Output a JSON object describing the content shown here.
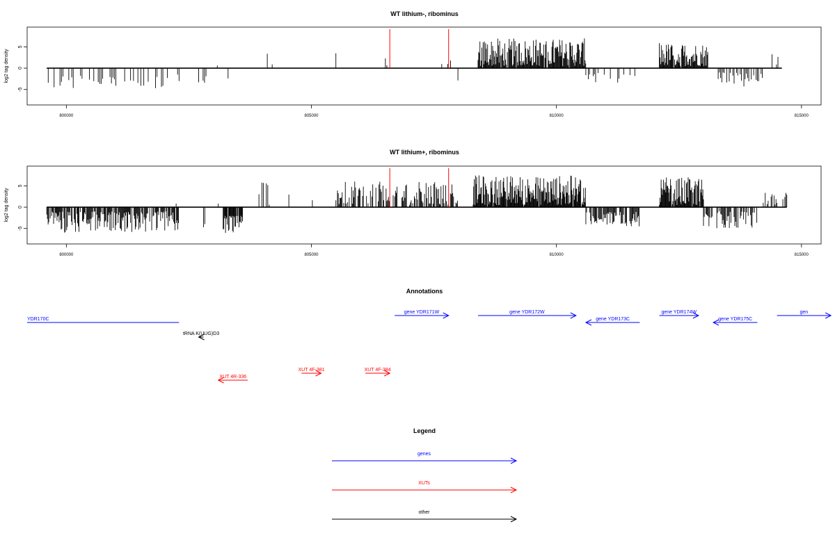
{
  "colors": {
    "signal": "#000000",
    "highlight": "#ff0000",
    "gene": "#0000ff",
    "xut": "#ff0000",
    "other": "#000000"
  },
  "chart_data": [
    {
      "type": "bar",
      "title": "WT lithium-, ribominus",
      "ylabel": "log2 tag density",
      "xlim": [
        799200,
        815400
      ],
      "ylim": [
        -7,
        8
      ],
      "xticks": [
        800000,
        805000,
        810000,
        815000
      ],
      "yticks": [
        -5,
        0,
        5
      ],
      "baseline_span": [
        799600,
        814600
      ],
      "highlight_x": [
        806600,
        807800
      ],
      "segments": [
        {
          "x": [
            799600,
            802300
          ],
          "sign": -1,
          "density": 0.4,
          "amp": [
            1.5,
            5.0
          ],
          "step": 30
        },
        {
          "x": [
            802500,
            802600
          ],
          "sign": 1,
          "density": 0.3,
          "amp": [
            0.5,
            1.0
          ],
          "step": 40
        },
        {
          "x": [
            802700,
            802900
          ],
          "sign": -1,
          "density": 0.5,
          "amp": [
            1.0,
            5.0
          ],
          "step": 30
        },
        {
          "x": [
            803000,
            803100
          ],
          "sign": 1,
          "density": 0.3,
          "amp": [
            0.5,
            1.0
          ],
          "step": 40
        },
        {
          "x": [
            803300,
            803600
          ],
          "sign": -1,
          "density": 0.3,
          "amp": [
            1.5,
            3.5
          ],
          "step": 40
        },
        {
          "x": [
            803900,
            804600
          ],
          "sign": 1,
          "density": 0.12,
          "amp": [
            0.5,
            6.0
          ],
          "step": 50
        },
        {
          "x": [
            805400,
            806000
          ],
          "sign": 1,
          "density": 0.18,
          "amp": [
            0.5,
            4.0
          ],
          "step": 50
        },
        {
          "x": [
            806300,
            806700
          ],
          "sign": 1,
          "density": 0.2,
          "amp": [
            0.5,
            3.0
          ],
          "step": 30
        },
        {
          "x": [
            807300,
            807900
          ],
          "sign": 1,
          "density": 0.18,
          "amp": [
            0.5,
            2.0
          ],
          "step": 30
        },
        {
          "x": [
            807900,
            808000
          ],
          "sign": -1,
          "density": 0.5,
          "amp": [
            2.0,
            3.5
          ],
          "step": 30
        },
        {
          "x": [
            808400,
            810600
          ],
          "sign": 1,
          "density": 0.95,
          "amp": [
            0.5,
            7.0
          ],
          "step": 13
        },
        {
          "x": [
            810600,
            811700
          ],
          "sign": -1,
          "density": 0.45,
          "amp": [
            1.0,
            3.5
          ],
          "step": 25
        },
        {
          "x": [
            812100,
            813100
          ],
          "sign": 1,
          "density": 0.95,
          "amp": [
            0.5,
            6.0
          ],
          "step": 13
        },
        {
          "x": [
            813200,
            814200
          ],
          "sign": -1,
          "density": 0.5,
          "amp": [
            1.0,
            4.5
          ],
          "step": 25
        },
        {
          "x": [
            814400,
            814600
          ],
          "sign": 1,
          "density": 0.5,
          "amp": [
            0.5,
            3.5
          ],
          "step": 30
        }
      ]
    },
    {
      "type": "bar",
      "title": "WT lithium+, ribominus",
      "ylabel": "log2 tag density",
      "xlim": [
        799200,
        815400
      ],
      "ylim": [
        -7,
        8
      ],
      "xticks": [
        800000,
        805000,
        810000,
        815000
      ],
      "yticks": [
        -5,
        0,
        5
      ],
      "baseline_span": [
        799600,
        814700
      ],
      "highlight_x": [
        806600,
        807800
      ],
      "segments": [
        {
          "x": [
            799600,
            802300
          ],
          "sign": -1,
          "density": 0.8,
          "amp": [
            1.0,
            6.0
          ],
          "step": 14
        },
        {
          "x": [
            802200,
            802300
          ],
          "sign": 1,
          "density": 0.5,
          "amp": [
            0.5,
            1.5
          ],
          "step": 40
        },
        {
          "x": [
            802800,
            802900
          ],
          "sign": -1,
          "density": 0.6,
          "amp": [
            2.0,
            5.0
          ],
          "step": 25
        },
        {
          "x": [
            803100,
            803200
          ],
          "sign": 1,
          "density": 0.5,
          "amp": [
            0.5,
            1.5
          ],
          "step": 40
        },
        {
          "x": [
            803200,
            803600
          ],
          "sign": -1,
          "density": 0.9,
          "amp": [
            2.0,
            6.5
          ],
          "step": 12
        },
        {
          "x": [
            803900,
            804300
          ],
          "sign": 1,
          "density": 0.3,
          "amp": [
            0.5,
            7.0
          ],
          "step": 30
        },
        {
          "x": [
            804300,
            805100
          ],
          "sign": 1,
          "density": 0.15,
          "amp": [
            0.5,
            3.0
          ],
          "step": 40
        },
        {
          "x": [
            805500,
            808000
          ],
          "sign": 1,
          "density": 0.65,
          "amp": [
            0.5,
            6.0
          ],
          "step": 16
        },
        {
          "x": [
            808300,
            810600
          ],
          "sign": 1,
          "density": 0.95,
          "amp": [
            0.5,
            7.5
          ],
          "step": 12
        },
        {
          "x": [
            810600,
            811700
          ],
          "sign": -1,
          "density": 0.75,
          "amp": [
            1.0,
            4.5
          ],
          "step": 16
        },
        {
          "x": [
            812100,
            813000
          ],
          "sign": 1,
          "density": 0.95,
          "amp": [
            0.5,
            7.0
          ],
          "step": 12
        },
        {
          "x": [
            813000,
            814100
          ],
          "sign": -1,
          "density": 0.7,
          "amp": [
            1.0,
            5.0
          ],
          "step": 16
        },
        {
          "x": [
            814200,
            814700
          ],
          "sign": 1,
          "density": 0.6,
          "amp": [
            0.5,
            3.5
          ],
          "step": 20
        }
      ]
    }
  ],
  "annotations": {
    "title": "Annotations",
    "features": [
      {
        "label": "YDR170C",
        "type": "gene",
        "start": 799200,
        "end": 802300,
        "strand": "none",
        "track": 1
      },
      {
        "label": "gene YDR171W",
        "type": "gene",
        "start": 806700,
        "end": 807800,
        "strand": "+",
        "track": 0
      },
      {
        "label": "gene YDR172W",
        "type": "gene",
        "start": 808400,
        "end": 810400,
        "strand": "+",
        "track": 0
      },
      {
        "label": "gene YDR173C",
        "type": "gene",
        "start": 810600,
        "end": 811700,
        "strand": "-",
        "track": 1
      },
      {
        "label": "gene YDR174W",
        "type": "gene",
        "start": 812100,
        "end": 812900,
        "strand": "+",
        "track": 0
      },
      {
        "label": "gene YDR175C",
        "type": "gene",
        "start": 813200,
        "end": 814100,
        "strand": "-",
        "track": 1
      },
      {
        "label": "gen",
        "type": "gene",
        "start": 814500,
        "end": 815600,
        "strand": "+",
        "track": 0
      },
      {
        "label": "tRNA K(UUG)D3",
        "type": "other",
        "start": 802700,
        "end": 802800,
        "strand": "-",
        "track": 2
      },
      {
        "label": "XUT 4R-336",
        "type": "xut",
        "start": 803100,
        "end": 803700,
        "strand": "-",
        "track": 4
      },
      {
        "label": "XUT 4F-381",
        "type": "xut",
        "start": 804800,
        "end": 805200,
        "strand": "+",
        "track": 3
      },
      {
        "label": "XUT 4F-384",
        "type": "xut",
        "start": 806100,
        "end": 806600,
        "strand": "+",
        "track": 3
      }
    ]
  },
  "legend": {
    "title": "Legend",
    "items": [
      {
        "label": "genes",
        "type": "gene"
      },
      {
        "label": "XUTs",
        "type": "xut"
      },
      {
        "label": "other",
        "type": "other"
      }
    ]
  }
}
